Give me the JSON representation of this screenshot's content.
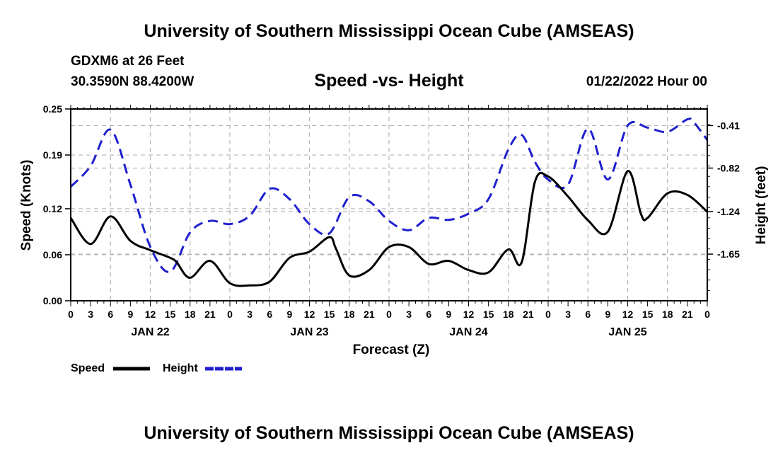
{
  "header": {
    "title": "University of Southern Mississippi Ocean Cube (AMSEAS)",
    "station": "GDXM6 at 26 Feet",
    "coords": "30.3590N  88.4200W",
    "subtitle": "Speed -vs- Height",
    "date": "01/22/2022 Hour 00"
  },
  "footer": {
    "title": "University of Southern Mississippi Ocean Cube (AMSEAS)"
  },
  "chart_data": {
    "type": "line",
    "title": "Speed -vs- Height",
    "xlabel": "Forecast (Z)",
    "ylabel": "Speed (Knots)",
    "y2label": "Height (feet)",
    "xlim": [
      0,
      96
    ],
    "ylim": [
      0,
      0.25
    ],
    "y2lim": [
      -2.1,
      -0.25
    ],
    "grid": true,
    "x_tick_labels": [
      "0",
      "3",
      "6",
      "9",
      "12",
      "15",
      "18",
      "21",
      "0",
      "3",
      "6",
      "9",
      "12",
      "15",
      "18",
      "21",
      "0",
      "3",
      "6",
      "9",
      "12",
      "15",
      "18",
      "21",
      "0",
      "3",
      "6",
      "9",
      "12",
      "15",
      "18",
      "21",
      "0"
    ],
    "y_tick_labels": [
      "0.00",
      "0.06",
      "0.12",
      "0.19",
      "0.25"
    ],
    "y2_tick_labels": [
      "-1.65",
      "-1.24",
      "-0.82",
      "-0.41"
    ],
    "day_labels": [
      {
        "label": "JAN 22",
        "hour": 12
      },
      {
        "label": "JAN 23",
        "hour": 36
      },
      {
        "label": "JAN 24",
        "hour": 60
      },
      {
        "label": "JAN 25",
        "hour": 84
      }
    ],
    "legend_position": "bottom-left",
    "series": [
      {
        "name": "Speed",
        "color": "#000000",
        "style": "solid",
        "axis": "left",
        "x": [
          0,
          3,
          6,
          9,
          12,
          15,
          16,
          18,
          21,
          24,
          27,
          30,
          33,
          36,
          39,
          40,
          42,
          45,
          48,
          51,
          54,
          57,
          60,
          63,
          66,
          68,
          70,
          72,
          75,
          78,
          81,
          84,
          86,
          87,
          90,
          93,
          96
        ],
        "values": [
          0.108,
          0.074,
          0.11,
          0.078,
          0.066,
          0.056,
          0.05,
          0.03,
          0.052,
          0.023,
          0.02,
          0.025,
          0.056,
          0.064,
          0.083,
          0.068,
          0.033,
          0.04,
          0.07,
          0.07,
          0.048,
          0.052,
          0.04,
          0.037,
          0.067,
          0.05,
          0.155,
          0.162,
          0.136,
          0.105,
          0.09,
          0.169,
          0.113,
          0.108,
          0.14,
          0.138,
          0.116
        ]
      },
      {
        "name": "Height",
        "color": "#1f1fcf",
        "style": "dashed",
        "axis": "right",
        "x": [
          0,
          3,
          6,
          9,
          12,
          15,
          18,
          21,
          24,
          27,
          30,
          33,
          36,
          39,
          42,
          45,
          48,
          51,
          54,
          57,
          60,
          63,
          66,
          68,
          70,
          72,
          75,
          78,
          81,
          84,
          87,
          90,
          93,
          94,
          96
        ],
        "values": [
          -1.0,
          -0.8,
          -0.45,
          -0.98,
          -1.58,
          -1.82,
          -1.44,
          -1.33,
          -1.36,
          -1.28,
          -1.02,
          -1.12,
          -1.36,
          -1.45,
          -1.1,
          -1.14,
          -1.33,
          -1.42,
          -1.3,
          -1.32,
          -1.26,
          -1.12,
          -0.64,
          -0.5,
          -0.76,
          -0.93,
          -0.98,
          -0.44,
          -0.93,
          -0.41,
          -0.43,
          -0.47,
          -0.35,
          -0.38,
          -0.55
        ]
      }
    ]
  }
}
